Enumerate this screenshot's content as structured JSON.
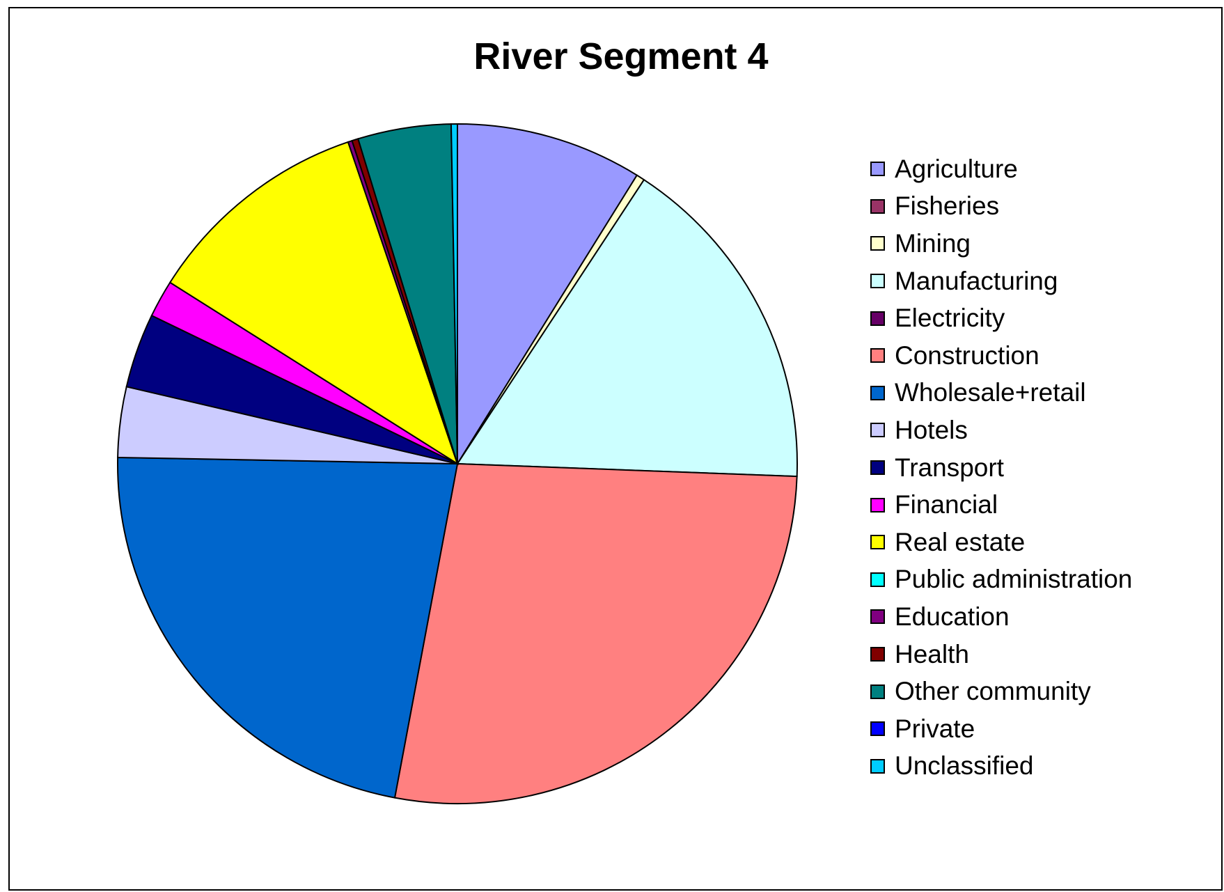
{
  "chart_data": {
    "type": "pie",
    "title": "River Segment 4",
    "legend_position": "right",
    "categories": [
      "Agriculture",
      "Fisheries",
      "Mining",
      "Manufacturing",
      "Electricity",
      "Construction",
      "Wholesale+retail",
      "Hotels",
      "Transport",
      "Financial",
      "Real estate",
      "Public administration",
      "Education",
      "Health",
      "Other community",
      "Private",
      "Unclassified"
    ],
    "values": [
      9.0,
      0.0,
      0.4,
      16.6,
      0.0,
      27.8,
      22.7,
      3.4,
      3.6,
      1.8,
      11.0,
      0.0,
      0.2,
      0.3,
      4.5,
      0.0,
      0.3
    ],
    "colors": [
      "#9999FF",
      "#993366",
      "#FFFFCC",
      "#CCFFFF",
      "#660066",
      "#FF8080",
      "#0066CC",
      "#CCCCFF",
      "#000080",
      "#FF00FF",
      "#FFFF00",
      "#00FFFF",
      "#800080",
      "#800000",
      "#008080",
      "#0000FF",
      "#00CCFF"
    ]
  }
}
